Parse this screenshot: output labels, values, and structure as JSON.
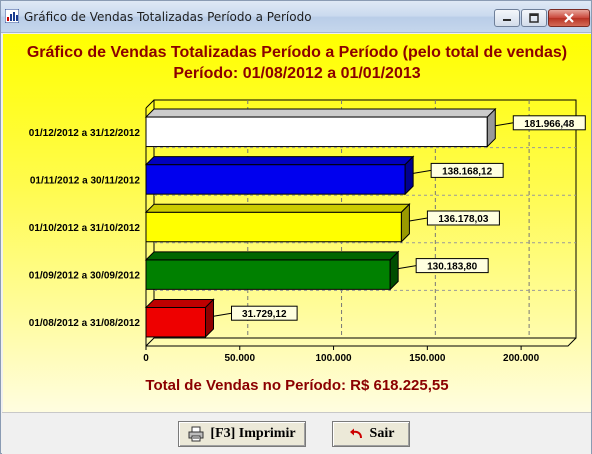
{
  "window": {
    "title": "Gráfico de Vendas Totalizadas Período a Período",
    "min_icon": "minimize-icon",
    "max_icon": "maximize-icon",
    "close_icon": "close-icon"
  },
  "chart": {
    "title_line1": "Gráfico de Vendas Totalizadas Período a Período (pelo total de vendas)",
    "title_line2": "Período: 01/08/2012 a 01/01/2013",
    "total_text": "Total de Vendas no Período: R$ 618.225,55"
  },
  "chart_data": {
    "type": "bar",
    "orientation": "horizontal",
    "categories": [
      "01/12/2012 a 31/12/2012",
      "01/11/2012 a 30/11/2012",
      "01/10/2012 a 31/10/2012",
      "01/09/2012 a 30/09/2012",
      "01/08/2012 a 31/08/2012"
    ],
    "values": [
      181966.48,
      138168.12,
      136178.03,
      130183.8,
      31729.12
    ],
    "value_labels": [
      "181.966,48",
      "138.168,12",
      "136.178,03",
      "130.183,80",
      "31.729,12"
    ],
    "colors": [
      "#ffffff",
      "#0000ee",
      "#ffff00",
      "#008000",
      "#ee0000"
    ],
    "xlim": [
      0,
      225000
    ],
    "ticks": [
      0,
      50000,
      100000,
      150000,
      200000
    ],
    "tick_labels": [
      "0",
      "50.000",
      "100.000",
      "150.000",
      "200.000"
    ],
    "grid": true
  },
  "buttons": {
    "print_label": "[F3] Imprimir",
    "print_icon": "printer-icon",
    "exit_label": "Sair",
    "exit_icon": "undo-arrow-icon"
  }
}
